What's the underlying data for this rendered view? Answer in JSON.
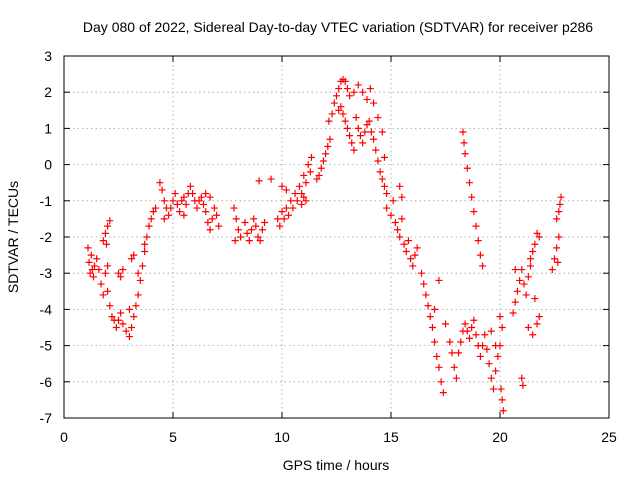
{
  "colors": {
    "series": "#ff0000",
    "frame": "#000000",
    "grid": "#a0a0a0",
    "background": "#ffffff"
  },
  "chart_data": {
    "type": "scatter",
    "title": "Day 080 of 2022, Sidereal Day-to-day VTEC variation (SDTVAR) for receiver p286",
    "xlabel": "GPS time / hours",
    "ylabel": "SDTVAR / TECUs",
    "xlim": [
      0,
      25
    ],
    "ylim": [
      -7,
      3
    ],
    "xticks": [
      "0",
      "5",
      "10",
      "15",
      "20",
      "25"
    ],
    "yticks": [
      "-7",
      "-6",
      "-5",
      "-4",
      "-3",
      "-2",
      "-1",
      "0",
      "1",
      "2",
      "3"
    ],
    "grid": true,
    "marker": "+",
    "series": [
      {
        "name": "p286",
        "points": [
          [
            1.1,
            -2.3
          ],
          [
            1.15,
            -2.7
          ],
          [
            1.2,
            -3.0
          ],
          [
            1.25,
            -2.5
          ],
          [
            1.3,
            -2.9
          ],
          [
            1.35,
            -3.1
          ],
          [
            1.4,
            -2.8
          ],
          [
            1.5,
            -2.6
          ],
          [
            1.6,
            -2.9
          ],
          [
            1.7,
            -3.3
          ],
          [
            1.8,
            -3.6
          ],
          [
            1.9,
            -3.0
          ],
          [
            2.0,
            -3.5
          ],
          [
            2.1,
            -3.9
          ],
          [
            2.2,
            -4.2
          ],
          [
            2.0,
            -2.8
          ],
          [
            1.8,
            -2.1
          ],
          [
            1.9,
            -1.9
          ],
          [
            2.0,
            -1.7
          ],
          [
            2.1,
            -1.55
          ],
          [
            1.95,
            -2.2
          ],
          [
            2.3,
            -4.3
          ],
          [
            2.4,
            -4.5
          ],
          [
            2.5,
            -4.3
          ],
          [
            2.6,
            -4.1
          ],
          [
            2.7,
            -4.4
          ],
          [
            2.85,
            -4.6
          ],
          [
            3.0,
            -4.75
          ],
          [
            3.1,
            -4.5
          ],
          [
            3.2,
            -4.2
          ],
          [
            3.3,
            -3.9
          ],
          [
            3.4,
            -3.6
          ],
          [
            3.5,
            -3.2
          ],
          [
            3.6,
            -2.8
          ],
          [
            3.7,
            -2.4
          ],
          [
            3.8,
            -2.0
          ],
          [
            3.9,
            -1.7
          ],
          [
            4.0,
            -1.5
          ],
          [
            4.1,
            -1.3
          ],
          [
            4.2,
            -1.2
          ],
          [
            2.5,
            -3.0
          ],
          [
            2.6,
            -3.1
          ],
          [
            2.7,
            -2.9
          ],
          [
            3.1,
            -2.6
          ],
          [
            3.2,
            -2.5
          ],
          [
            3.0,
            -4.0
          ],
          [
            3.4,
            -3.0
          ],
          [
            3.7,
            -2.2
          ],
          [
            4.4,
            -0.5
          ],
          [
            4.5,
            -0.7
          ],
          [
            4.6,
            -1.0
          ],
          [
            4.7,
            -1.2
          ],
          [
            4.8,
            -1.4
          ],
          [
            4.9,
            -1.2
          ],
          [
            5.0,
            -1.0
          ],
          [
            5.1,
            -0.8
          ],
          [
            5.2,
            -1.1
          ],
          [
            5.3,
            -1.3
          ],
          [
            5.4,
            -1.0
          ],
          [
            5.5,
            -0.9
          ],
          [
            5.6,
            -1.1
          ],
          [
            5.7,
            -0.8
          ],
          [
            5.8,
            -0.6
          ],
          [
            5.9,
            -0.8
          ],
          [
            6.0,
            -1.0
          ],
          [
            6.1,
            -1.2
          ],
          [
            6.2,
            -1.0
          ],
          [
            6.3,
            -0.9
          ],
          [
            6.4,
            -1.1
          ],
          [
            6.5,
            -1.3
          ],
          [
            6.6,
            -1.6
          ],
          [
            6.7,
            -1.8
          ],
          [
            6.8,
            -1.5
          ],
          [
            6.5,
            -0.8
          ],
          [
            6.7,
            -0.9
          ],
          [
            6.9,
            -1.2
          ],
          [
            7.0,
            -1.4
          ],
          [
            7.1,
            -1.7
          ],
          [
            4.6,
            -1.5
          ],
          [
            5.5,
            -1.4
          ],
          [
            7.8,
            -1.2
          ],
          [
            7.9,
            -1.5
          ],
          [
            8.0,
            -1.8
          ],
          [
            7.85,
            -2.1
          ],
          [
            8.1,
            -2.0
          ],
          [
            8.3,
            -1.6
          ],
          [
            8.4,
            -1.9
          ],
          [
            8.5,
            -2.1
          ],
          [
            8.6,
            -1.8
          ],
          [
            8.7,
            -1.5
          ],
          [
            8.8,
            -1.7
          ],
          [
            8.9,
            -2.0
          ],
          [
            9.0,
            -2.1
          ],
          [
            9.1,
            -1.8
          ],
          [
            9.2,
            -1.6
          ],
          [
            8.95,
            -0.45
          ],
          [
            9.5,
            -0.4
          ],
          [
            9.8,
            -1.5
          ],
          [
            9.9,
            -1.7
          ],
          [
            10.0,
            -1.3
          ],
          [
            10.1,
            -1.5
          ],
          [
            10.2,
            -1.2
          ],
          [
            10.3,
            -1.4
          ],
          [
            10.4,
            -1.0
          ],
          [
            10.5,
            -1.2
          ],
          [
            10.6,
            -0.8
          ],
          [
            10.7,
            -1.0
          ],
          [
            10.8,
            -0.6
          ],
          [
            10.9,
            -0.8
          ],
          [
            11.0,
            -0.3
          ],
          [
            11.1,
            -0.5
          ],
          [
            11.2,
            0.0
          ],
          [
            11.3,
            -0.2
          ],
          [
            11.35,
            0.2
          ],
          [
            11.1,
            -1.0
          ],
          [
            11.0,
            -0.9
          ],
          [
            10.9,
            -1.1
          ],
          [
            10.0,
            -0.6
          ],
          [
            10.2,
            -0.7
          ],
          [
            11.6,
            -0.4
          ],
          [
            11.8,
            -0.1
          ],
          [
            12.0,
            0.3
          ],
          [
            12.1,
            0.5
          ],
          [
            12.2,
            0.7
          ],
          [
            11.7,
            -0.3
          ],
          [
            11.9,
            0.1
          ],
          [
            12.15,
            1.2
          ],
          [
            12.3,
            1.4
          ],
          [
            12.4,
            1.7
          ],
          [
            12.5,
            1.9
          ],
          [
            12.6,
            2.1
          ],
          [
            12.7,
            2.3
          ],
          [
            12.8,
            2.35
          ],
          [
            12.9,
            2.3
          ],
          [
            13.0,
            2.1
          ],
          [
            13.1,
            1.9
          ],
          [
            12.6,
            1.5
          ],
          [
            12.7,
            1.6
          ],
          [
            12.8,
            1.4
          ],
          [
            12.9,
            1.2
          ],
          [
            13.0,
            1.0
          ],
          [
            13.1,
            0.8
          ],
          [
            13.2,
            0.6
          ],
          [
            13.3,
            0.4
          ],
          [
            13.4,
            1.3
          ],
          [
            13.5,
            1.0
          ],
          [
            13.6,
            0.8
          ],
          [
            13.7,
            0.6
          ],
          [
            13.8,
            0.9
          ],
          [
            13.9,
            1.1
          ],
          [
            14.0,
            1.2
          ],
          [
            14.1,
            0.9
          ],
          [
            14.2,
            0.7
          ],
          [
            14.3,
            0.4
          ],
          [
            14.4,
            0.1
          ],
          [
            14.5,
            -0.2
          ],
          [
            14.6,
            -0.4
          ],
          [
            14.7,
            -0.6
          ],
          [
            14.8,
            -0.8
          ],
          [
            13.3,
            2.0
          ],
          [
            13.5,
            2.2
          ],
          [
            13.7,
            2.0
          ],
          [
            13.9,
            1.8
          ],
          [
            14.05,
            2.1
          ],
          [
            14.2,
            1.7
          ],
          [
            14.4,
            1.3
          ],
          [
            14.6,
            0.9
          ],
          [
            14.7,
            0.2
          ],
          [
            14.8,
            -1.2
          ],
          [
            15.0,
            -1.4
          ],
          [
            15.1,
            -1.0
          ],
          [
            15.2,
            -1.6
          ],
          [
            15.3,
            -1.8
          ],
          [
            15.4,
            -2.0
          ],
          [
            15.5,
            -1.5
          ],
          [
            15.6,
            -2.2
          ],
          [
            15.7,
            -2.4
          ],
          [
            15.8,
            -2.1
          ],
          [
            15.9,
            -2.6
          ],
          [
            16.0,
            -2.8
          ],
          [
            16.1,
            -2.5
          ],
          [
            16.2,
            -2.3
          ],
          [
            15.4,
            -0.6
          ],
          [
            15.5,
            -0.9
          ],
          [
            16.4,
            -3.0
          ],
          [
            16.5,
            -3.3
          ],
          [
            16.6,
            -3.6
          ],
          [
            16.7,
            -3.9
          ],
          [
            16.8,
            -4.2
          ],
          [
            16.9,
            -4.5
          ],
          [
            17.0,
            -4.9
          ],
          [
            17.1,
            -5.3
          ],
          [
            17.2,
            -5.6
          ],
          [
            17.3,
            -6.0
          ],
          [
            17.4,
            -6.3
          ],
          [
            17.0,
            -4.0
          ],
          [
            17.2,
            -3.2
          ],
          [
            17.5,
            -4.4
          ],
          [
            17.7,
            -4.9
          ],
          [
            17.8,
            -5.2
          ],
          [
            17.9,
            -5.6
          ],
          [
            18.0,
            -5.9
          ],
          [
            18.1,
            -5.2
          ],
          [
            18.2,
            -4.9
          ],
          [
            18.3,
            -4.6
          ],
          [
            18.4,
            -4.4
          ],
          [
            18.5,
            -4.6
          ],
          [
            18.6,
            -4.8
          ],
          [
            18.7,
            -4.5
          ],
          [
            18.8,
            -4.3
          ],
          [
            18.9,
            -4.7
          ],
          [
            19.0,
            -5.0
          ],
          [
            19.1,
            -5.3
          ],
          [
            19.2,
            -5.0
          ],
          [
            19.3,
            -4.7
          ],
          [
            19.4,
            -5.1
          ],
          [
            18.3,
            0.9
          ],
          [
            18.35,
            0.6
          ],
          [
            18.4,
            0.3
          ],
          [
            18.5,
            -0.1
          ],
          [
            18.6,
            -0.5
          ],
          [
            18.7,
            -0.9
          ],
          [
            18.8,
            -1.3
          ],
          [
            18.9,
            -1.7
          ],
          [
            19.0,
            -2.1
          ],
          [
            19.1,
            -2.5
          ],
          [
            19.2,
            -2.8
          ],
          [
            19.5,
            -5.5
          ],
          [
            19.6,
            -5.9
          ],
          [
            19.7,
            -6.2
          ],
          [
            19.8,
            -5.7
          ],
          [
            19.9,
            -5.3
          ],
          [
            20.0,
            -5.0
          ],
          [
            20.1,
            -6.5
          ],
          [
            20.15,
            -6.8
          ],
          [
            20.05,
            -6.2
          ],
          [
            19.8,
            -5.0
          ],
          [
            20.0,
            -4.2
          ],
          [
            20.1,
            -4.5
          ],
          [
            19.6,
            -4.6
          ],
          [
            20.6,
            -4.1
          ],
          [
            20.7,
            -3.8
          ],
          [
            20.8,
            -3.5
          ],
          [
            20.9,
            -3.2
          ],
          [
            21.0,
            -2.9
          ],
          [
            21.1,
            -3.3
          ],
          [
            21.2,
            -3.6
          ],
          [
            21.3,
            -3.1
          ],
          [
            21.4,
            -2.8
          ],
          [
            21.5,
            -2.4
          ],
          [
            21.6,
            -2.2
          ],
          [
            21.7,
            -1.9
          ],
          [
            21.8,
            -2.0
          ],
          [
            20.7,
            -2.9
          ],
          [
            21.0,
            -5.9
          ],
          [
            21.05,
            -6.1
          ],
          [
            21.3,
            -4.5
          ],
          [
            21.5,
            -4.7
          ],
          [
            21.7,
            -4.4
          ],
          [
            21.8,
            -4.2
          ],
          [
            21.4,
            -2.6
          ],
          [
            21.6,
            -3.7
          ],
          [
            22.4,
            -2.9
          ],
          [
            22.5,
            -2.6
          ],
          [
            22.6,
            -2.3
          ],
          [
            22.7,
            -2.0
          ],
          [
            22.65,
            -2.7
          ],
          [
            22.6,
            -1.5
          ],
          [
            22.7,
            -1.3
          ],
          [
            22.75,
            -1.1
          ],
          [
            22.8,
            -0.9
          ]
        ]
      }
    ]
  }
}
